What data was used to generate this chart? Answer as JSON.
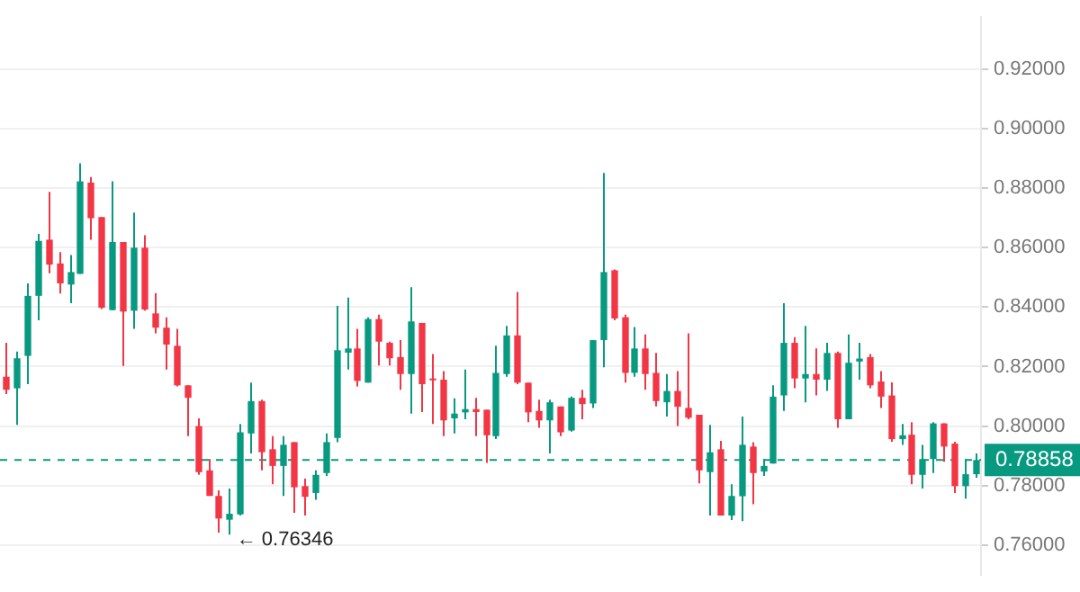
{
  "chart_data": {
    "type": "candlestick",
    "categories": [
      null,
      null,
      null,
      null,
      null,
      null,
      null,
      null,
      null,
      null,
      null,
      null,
      null,
      null,
      null,
      null,
      null,
      null,
      null,
      null,
      null,
      null,
      null,
      null,
      null,
      null,
      null,
      null,
      null,
      null,
      null,
      null,
      null,
      null,
      null,
      null,
      null,
      null,
      null,
      null,
      null,
      null,
      null,
      null,
      null,
      null,
      null,
      null,
      null,
      null,
      null,
      null,
      null,
      null,
      null,
      null,
      null,
      null,
      null,
      null,
      null,
      null,
      null,
      null,
      null,
      null,
      null,
      null,
      null,
      null,
      null,
      null,
      null,
      null,
      null,
      null,
      null,
      null,
      null,
      null,
      null,
      null,
      null,
      null,
      null,
      null,
      null,
      null,
      null,
      null,
      null,
      null
    ],
    "ohlc": [
      [
        0.8166,
        0.828,
        0.8108,
        0.8122
      ],
      [
        0.8127,
        0.8251,
        0.8004,
        0.8228
      ],
      [
        0.8236,
        0.848,
        0.8141,
        0.8438
      ],
      [
        0.8438,
        0.8646,
        0.8356,
        0.8623
      ],
      [
        0.8627,
        0.8788,
        0.8514,
        0.8543
      ],
      [
        0.8547,
        0.8585,
        0.8446,
        0.848
      ],
      [
        0.8476,
        0.8575,
        0.8413,
        0.8518
      ],
      [
        0.8512,
        0.8884,
        0.8512,
        0.8823
      ],
      [
        0.8819,
        0.8838,
        0.8627,
        0.8699
      ],
      [
        0.8703,
        0.8703,
        0.8394,
        0.8398
      ],
      [
        0.839,
        0.8823,
        0.839,
        0.8619
      ],
      [
        0.8619,
        0.8619,
        0.8202,
        0.8385
      ],
      [
        0.8388,
        0.8718,
        0.8327,
        0.86
      ],
      [
        0.86,
        0.8642,
        0.8388,
        0.8392
      ],
      [
        0.8379,
        0.8447,
        0.8312,
        0.8331
      ],
      [
        0.8331,
        0.8366,
        0.819,
        0.8274
      ],
      [
        0.827,
        0.8327,
        0.8133,
        0.8137
      ],
      [
        0.8137,
        0.8137,
        0.7966,
        0.8095
      ],
      [
        0.8,
        0.8026,
        0.7836,
        0.7845
      ],
      [
        0.7851,
        0.7889,
        0.7765,
        0.7765
      ],
      [
        0.7765,
        0.7784,
        0.7642,
        0.7689
      ],
      [
        0.7685,
        0.779,
        0.76346,
        0.7705
      ],
      [
        0.7703,
        0.8007,
        0.7699,
        0.7979
      ],
      [
        0.7975,
        0.8146,
        0.7908,
        0.8084
      ],
      [
        0.8084,
        0.8089,
        0.7851,
        0.7912
      ],
      [
        0.7922,
        0.7966,
        0.7804,
        0.7866
      ],
      [
        0.7866,
        0.7966,
        0.7765,
        0.7937
      ],
      [
        0.7946,
        0.7946,
        0.7708,
        0.7794
      ],
      [
        0.7798,
        0.7823,
        0.7699,
        0.7762
      ],
      [
        0.7775,
        0.7851,
        0.7752,
        0.7836
      ],
      [
        0.7842,
        0.7975,
        0.7832,
        0.7946
      ],
      [
        0.796,
        0.8404,
        0.7946,
        0.8255
      ],
      [
        0.8247,
        0.8432,
        0.819,
        0.8261
      ],
      [
        0.8261,
        0.8327,
        0.8133,
        0.8152
      ],
      [
        0.8146,
        0.8366,
        0.8146,
        0.836
      ],
      [
        0.836,
        0.8375,
        0.8204,
        0.8284
      ],
      [
        0.828,
        0.8284,
        0.8204,
        0.8228
      ],
      [
        0.8232,
        0.8289,
        0.8122,
        0.8175
      ],
      [
        0.8175,
        0.8467,
        0.8042,
        0.8352
      ],
      [
        0.8347,
        0.8347,
        0.8047,
        0.8141
      ],
      [
        0.816,
        0.8242,
        0.8007,
        0.8154
      ],
      [
        0.8156,
        0.8185,
        0.7966,
        0.8019
      ],
      [
        0.8026,
        0.8093,
        0.7975,
        0.8042
      ],
      [
        0.8046,
        0.819,
        0.8023,
        0.8057
      ],
      [
        0.8057,
        0.8095,
        0.7966,
        0.8047
      ],
      [
        0.8055,
        0.8055,
        0.7876,
        0.7969
      ],
      [
        0.7966,
        0.827,
        0.7956,
        0.8179
      ],
      [
        0.8175,
        0.8337,
        0.8166,
        0.8305
      ],
      [
        0.8305,
        0.8451,
        0.8141,
        0.8146
      ],
      [
        0.8146,
        0.8146,
        0.8013,
        0.8046
      ],
      [
        0.8051,
        0.8089,
        0.7994,
        0.8019
      ],
      [
        0.8019,
        0.8089,
        0.7908,
        0.808
      ],
      [
        0.8066,
        0.8066,
        0.7966,
        0.7979
      ],
      [
        0.7985,
        0.8099,
        0.7981,
        0.8095
      ],
      [
        0.8095,
        0.8122,
        0.8023,
        0.8074
      ],
      [
        0.8076,
        0.8289,
        0.8061,
        0.8289
      ],
      [
        0.8289,
        0.8851,
        0.8198,
        0.8518
      ],
      [
        0.8524,
        0.8527,
        0.8356,
        0.8362
      ],
      [
        0.8366,
        0.8375,
        0.8146,
        0.8179
      ],
      [
        0.8179,
        0.8333,
        0.8166,
        0.8261
      ],
      [
        0.8261,
        0.8308,
        0.8122,
        0.8175
      ],
      [
        0.8179,
        0.8246,
        0.8066,
        0.8084
      ],
      [
        0.808,
        0.8175,
        0.8032,
        0.8118
      ],
      [
        0.8118,
        0.8185,
        0.8,
        0.8065
      ],
      [
        0.8061,
        0.8312,
        0.8023,
        0.8028
      ],
      [
        0.8038,
        0.8038,
        0.7807,
        0.7851
      ],
      [
        0.7845,
        0.8004,
        0.7699,
        0.7912
      ],
      [
        0.7922,
        0.795,
        0.7699,
        0.7699
      ],
      [
        0.7699,
        0.7804,
        0.7684,
        0.7765
      ],
      [
        0.7764,
        0.8032,
        0.768,
        0.7937
      ],
      [
        0.7931,
        0.7946,
        0.7737,
        0.7842
      ],
      [
        0.7847,
        0.7889,
        0.7832,
        0.7866
      ],
      [
        0.7874,
        0.8137,
        0.7874,
        0.8099
      ],
      [
        0.8103,
        0.8413,
        0.8051,
        0.828
      ],
      [
        0.828,
        0.8299,
        0.8127,
        0.816
      ],
      [
        0.816,
        0.8337,
        0.808,
        0.8175
      ],
      [
        0.8175,
        0.8261,
        0.8103,
        0.8156
      ],
      [
        0.8156,
        0.828,
        0.8118,
        0.8246
      ],
      [
        0.8246,
        0.8251,
        0.7994,
        0.8023
      ],
      [
        0.8023,
        0.8308,
        0.8023,
        0.8213
      ],
      [
        0.8217,
        0.828,
        0.8156,
        0.8227
      ],
      [
        0.8232,
        0.8242,
        0.8127,
        0.8137
      ],
      [
        0.815,
        0.8185,
        0.8061,
        0.8099
      ],
      [
        0.8103,
        0.8147,
        0.7947,
        0.7956
      ],
      [
        0.7956,
        0.8007,
        0.7937,
        0.7969
      ],
      [
        0.7971,
        0.8013,
        0.7804,
        0.7836
      ],
      [
        0.7836,
        0.7937,
        0.779,
        0.7889
      ],
      [
        0.7889,
        0.8013,
        0.7842,
        0.8009
      ],
      [
        0.8009,
        0.8009,
        0.788,
        0.7931
      ],
      [
        0.7941,
        0.7947,
        0.7775,
        0.7798
      ],
      [
        0.7798,
        0.7889,
        0.7756,
        0.7838
      ],
      [
        0.7838,
        0.7908,
        0.7826,
        0.78858
      ]
    ],
    "colors": [
      "#f23645",
      "#089981",
      "#089981",
      "#089981",
      "#f23645",
      "#f23645",
      "#089981",
      "#089981",
      "#f23645",
      "#f23645",
      "#089981",
      "#f23645",
      "#089981",
      "#f23645",
      "#f23645",
      "#f23645",
      "#f23645",
      "#f23645",
      "#f23645",
      "#f23645",
      "#f23645",
      "#089981",
      "#089981",
      "#089981",
      "#f23645",
      "#f23645",
      "#089981",
      "#f23645",
      "#f23645",
      "#089981",
      "#089981",
      "#089981",
      "#089981",
      "#f23645",
      "#089981",
      "#f23645",
      "#f23645",
      "#f23645",
      "#089981",
      "#f23645",
      "#f23645",
      "#f23645",
      "#089981",
      "#089981",
      "#f23645",
      "#f23645",
      "#089981",
      "#089981",
      "#f23645",
      "#f23645",
      "#f23645",
      "#089981",
      "#f23645",
      "#089981",
      "#f23645",
      "#089981",
      "#089981",
      "#f23645",
      "#f23645",
      "#089981",
      "#f23645",
      "#f23645",
      "#089981",
      "#f23645",
      "#f23645",
      "#f23645",
      "#089981",
      "#f23645",
      "#089981",
      "#089981",
      "#f23645",
      "#089981",
      "#089981",
      "#089981",
      "#f23645",
      "#089981",
      "#f23645",
      "#089981",
      "#f23645",
      "#089981",
      "#089981",
      "#f23645",
      "#f23645",
      "#f23645",
      "#089981",
      "#f23645",
      "#089981",
      "#089981",
      "#f23645",
      "#f23645",
      "#089981",
      "#089981"
    ],
    "ylim": [
      0.75,
      0.9375
    ],
    "yticks": [
      {
        "value": 0.76,
        "label": "0.76000"
      },
      {
        "value": 0.78,
        "label": "0.78000"
      },
      {
        "value": 0.8,
        "label": "0.80000"
      },
      {
        "value": 0.82,
        "label": "0.82000"
      },
      {
        "value": 0.84,
        "label": "0.84000"
      },
      {
        "value": 0.86,
        "label": "0.86000"
      },
      {
        "value": 0.88,
        "label": "0.88000"
      },
      {
        "value": 0.9,
        "label": "0.90000"
      },
      {
        "value": 0.92,
        "label": "0.92000"
      }
    ],
    "ref_lines": [
      {
        "axis": "y",
        "value": 0.78858,
        "label": "0.78858",
        "color": "#089981",
        "line_style": "dashed"
      }
    ],
    "annotations": [
      "← 0.76346"
    ],
    "grid": "y",
    "tick_labels": "y",
    "legend": false
  }
}
